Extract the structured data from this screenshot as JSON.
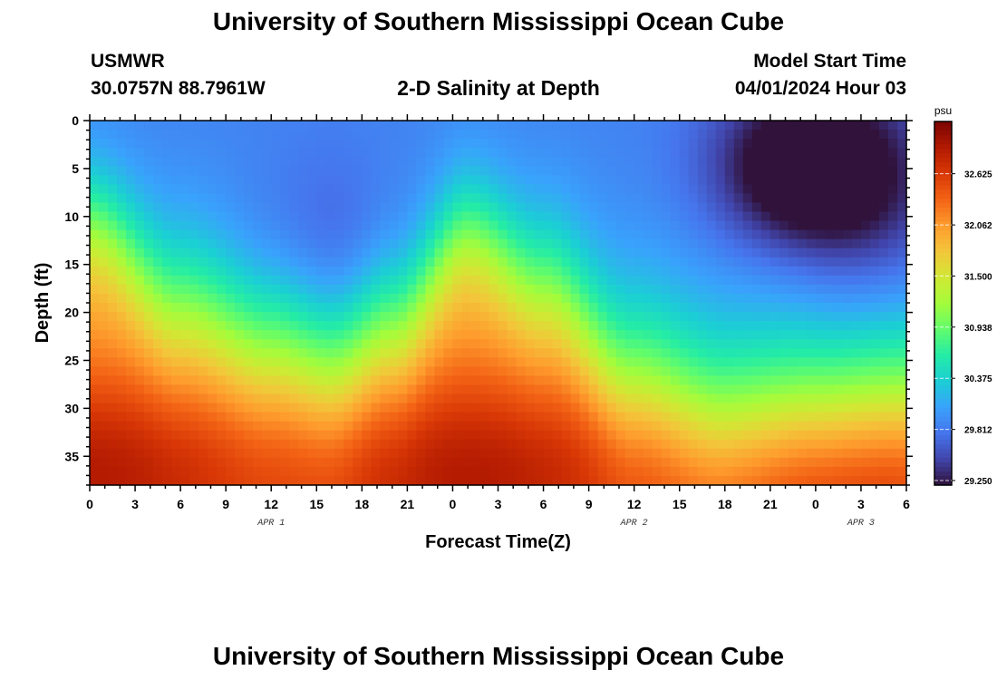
{
  "header": {
    "title": "University of Southern Mississippi Ocean Cube",
    "station": "USMWR",
    "coordinates": "30.0757N  88.7961W",
    "subtitle": "2-D Salinity at Depth",
    "model_start_label": "Model Start Time",
    "model_start_value": "04/01/2024 Hour 03",
    "footer_title": "University of Southern Mississippi Ocean Cube"
  },
  "chart_data": {
    "type": "heatmap",
    "title": "2-D Salinity at Depth",
    "xlabel": "Forecast Time(Z)",
    "ylabel": "Depth (ft)",
    "x_tick_labels": [
      "0",
      "3",
      "6",
      "9",
      "12",
      "15",
      "18",
      "21",
      "0",
      "3",
      "6",
      "9",
      "12",
      "15",
      "18",
      "21",
      "0",
      "3",
      "6"
    ],
    "x_hours": [
      0,
      3,
      6,
      9,
      12,
      15,
      18,
      21,
      24,
      27,
      30,
      33,
      36,
      39,
      42,
      45,
      48,
      51,
      54
    ],
    "x_range_hours": [
      0,
      54
    ],
    "date_labels": [
      {
        "text": "APR 1",
        "hour": 12
      },
      {
        "text": "APR 2",
        "hour": 36
      },
      {
        "text": "APR 3",
        "hour": 51
      }
    ],
    "y_tick_labels": [
      "0",
      "5",
      "10",
      "15",
      "20",
      "25",
      "30",
      "35"
    ],
    "y_ticks": [
      0,
      5,
      10,
      15,
      20,
      25,
      30,
      35
    ],
    "y_range": [
      0,
      38
    ],
    "y_inverted": true,
    "colorbar": {
      "unit": "psu",
      "min": 29.2,
      "max": 33.2,
      "tick_labels": [
        "32.625",
        "32.062",
        "31.500",
        "30.938",
        "30.375",
        "29.812",
        "29.250"
      ],
      "ticks": [
        32.625,
        32.062,
        31.5,
        30.938,
        30.375,
        29.812,
        29.25
      ],
      "colors": [
        "#30123b",
        "#4145ab",
        "#4675ed",
        "#39a2fc",
        "#1bcfd4",
        "#24eca6",
        "#61fc6c",
        "#a4fc3b",
        "#d1e834",
        "#f3c63a",
        "#fe9b2d",
        "#f36315",
        "#d93806",
        "#b11901",
        "#7a0402"
      ]
    },
    "field_description": {
      "surface_fresh_water_times_hours": [
        16,
        47
      ],
      "salty_core_depth_ft": 36,
      "halocline_depth_profile_ft": [
        [
          0,
          10
        ],
        [
          6,
          18
        ],
        [
          12,
          22
        ],
        [
          16,
          24
        ],
        [
          20,
          20
        ],
        [
          25,
          11
        ],
        [
          30,
          16
        ],
        [
          36,
          25
        ],
        [
          42,
          29
        ],
        [
          48,
          28
        ],
        [
          54,
          27
        ]
      ]
    }
  }
}
